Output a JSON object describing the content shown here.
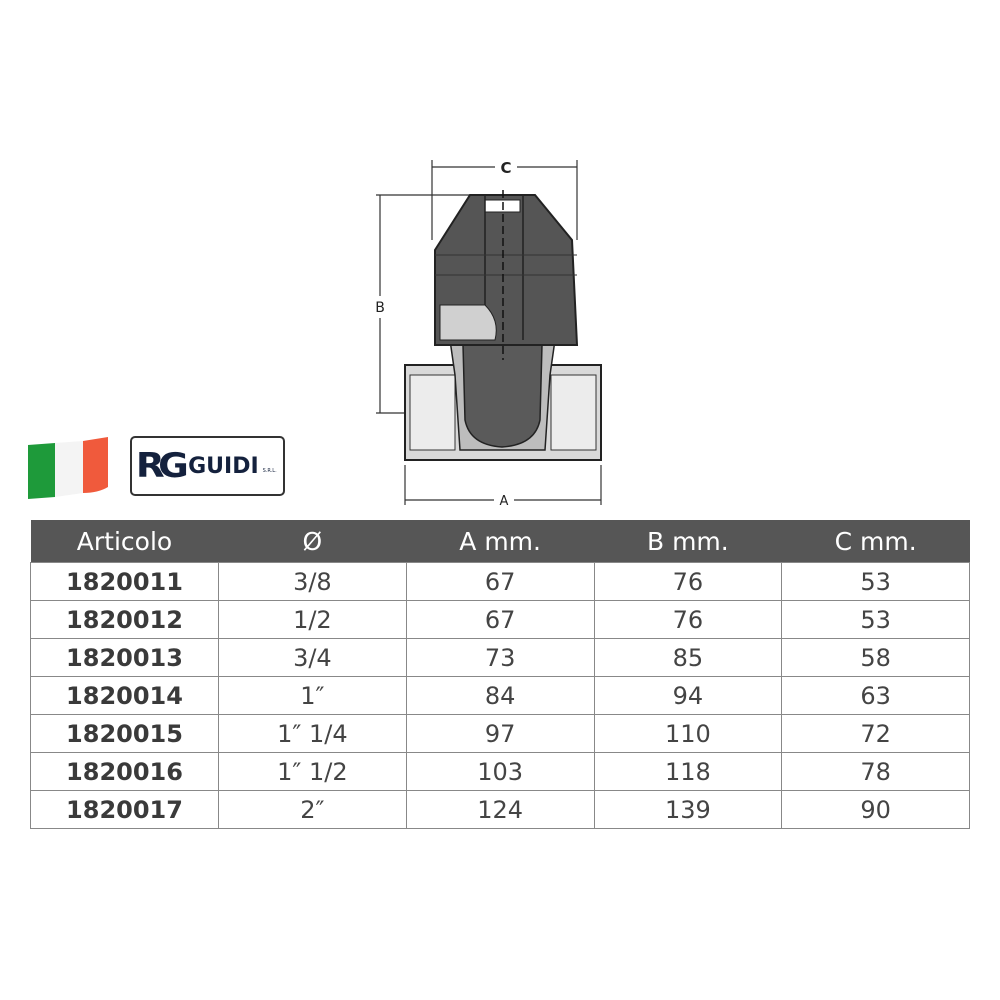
{
  "drawing": {
    "labels": {
      "a": "A",
      "b": "B",
      "c": "C"
    }
  },
  "logo": {
    "mark": "RG",
    "name": "GUIDI",
    "suffix": "S.R.L."
  },
  "flag": {
    "colors": [
      "#1e9a3a",
      "#ffffff",
      "#f05a3c"
    ]
  },
  "table": {
    "headers": [
      "Articolo",
      "Ø",
      "A mm.",
      "B mm.",
      "C mm."
    ],
    "rows": [
      [
        "1820011",
        "3/8",
        "67",
        "76",
        "53"
      ],
      [
        "1820012",
        "1/2",
        "67",
        "76",
        "53"
      ],
      [
        "1820013",
        "3/4",
        "73",
        "85",
        "58"
      ],
      [
        "1820014",
        "1″",
        "84",
        "94",
        "63"
      ],
      [
        "1820015",
        "1″ 1/4",
        "97",
        "110",
        "72"
      ],
      [
        "1820016",
        "1″ 1/2",
        "103",
        "118",
        "78"
      ],
      [
        "1820017",
        "2″",
        "124",
        "139",
        "90"
      ]
    ]
  }
}
